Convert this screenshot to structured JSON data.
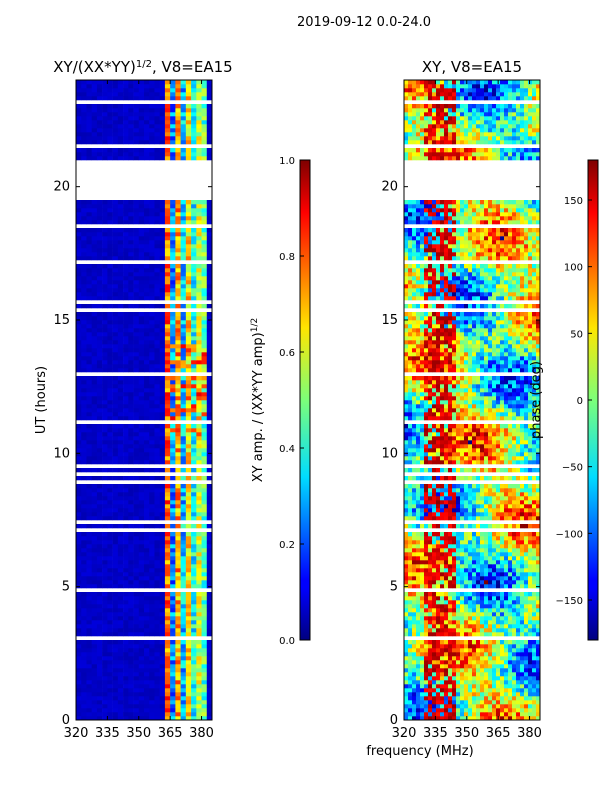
{
  "figure_title": "2019-09-12 0.0-24.0",
  "shared_xlabel": "frequency (MHz)",
  "chart_data": [
    {
      "type": "heatmap",
      "title_main": "XY/(XX*YY)",
      "title_sup": "1/2",
      "title_rest": ", V8=EA15",
      "xlabel": "",
      "ylabel": "UT (hours)",
      "xlim": [
        320,
        385
      ],
      "ylim": [
        0,
        24
      ],
      "xticks": [
        320,
        335,
        350,
        365,
        380
      ],
      "yticks": [
        0,
        5,
        10,
        15,
        20
      ],
      "colormap": "jet",
      "colorbar": {
        "label_main": "XY amp. / (XX*YY amp)",
        "label_sup": "1/2",
        "range": [
          0.0,
          1.0
        ],
        "ticks": [
          "0.0",
          "0.2",
          "0.4",
          "0.6",
          "0.8",
          "1.0"
        ]
      },
      "data_gap_hours": [
        [
          19.5,
          20.9
        ]
      ],
      "active_freq_band_mhz": [
        362,
        382
      ],
      "typical_values": {
        "low_band": 0.05,
        "active_band": 0.6
      }
    },
    {
      "type": "heatmap",
      "title_main": "XY, V8=EA15",
      "xlabel": "",
      "ylabel": "",
      "xlim": [
        320,
        385
      ],
      "ylim": [
        0,
        24
      ],
      "xticks": [
        320,
        335,
        350,
        365,
        380
      ],
      "yticks": [
        0,
        5,
        10,
        15,
        20
      ],
      "colormap": "jet",
      "colorbar": {
        "label_main": "phase (deg)",
        "range": [
          -180,
          180
        ],
        "ticks": [
          "-150",
          "-100",
          "-50",
          "0",
          "50",
          "100",
          "150"
        ]
      },
      "data_gap_hours": [
        [
          19.5,
          20.9
        ]
      ]
    }
  ]
}
